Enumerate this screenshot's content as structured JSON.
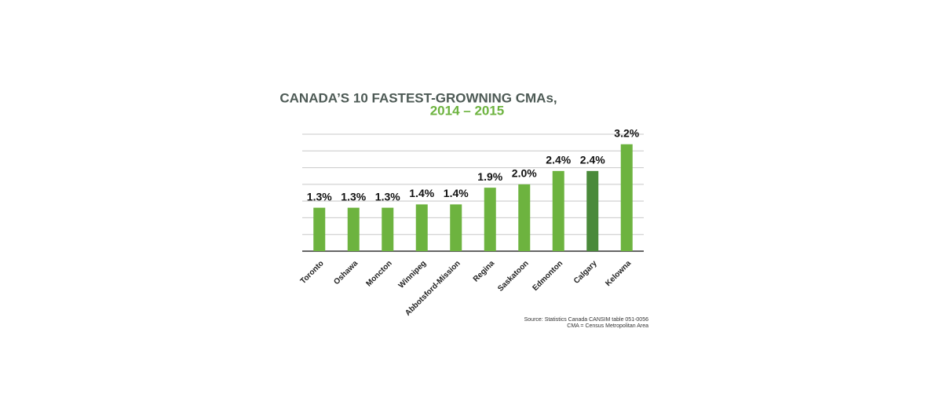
{
  "chart_data": {
    "type": "bar",
    "title": "CANADA’S 10 FASTEST-GROWNING CMAs,",
    "subtitle": "2014 – 2015",
    "categories": [
      "Toronto",
      "Oshawa",
      "Moncton",
      "Winnipeg",
      "Abbotsford-Mission",
      "Regina",
      "Saskatoon",
      "Edmonton",
      "Calgary",
      "Kelowna"
    ],
    "values": [
      1.3,
      1.3,
      1.3,
      1.4,
      1.4,
      1.9,
      2.0,
      2.4,
      2.4,
      3.2
    ],
    "value_labels": [
      "1.3%",
      "1.3%",
      "1.3%",
      "1.4%",
      "1.4%",
      "1.9%",
      "2.0%",
      "2.4%",
      "2.4%",
      "3.2%"
    ],
    "colors": [
      "#6db33f",
      "#6db33f",
      "#6db33f",
      "#6db33f",
      "#6db33f",
      "#6db33f",
      "#6db33f",
      "#6db33f",
      "#4a8a3a",
      "#6db33f"
    ],
    "ylim": [
      0,
      3.5
    ],
    "yticks": [
      0,
      0.5,
      1,
      1.5,
      2,
      2.5,
      3,
      3.5
    ],
    "grid": true,
    "source": "Source: Statistics Canada CANSIM table 051-0056",
    "note": "CMA = Census Metropolitan Area"
  }
}
